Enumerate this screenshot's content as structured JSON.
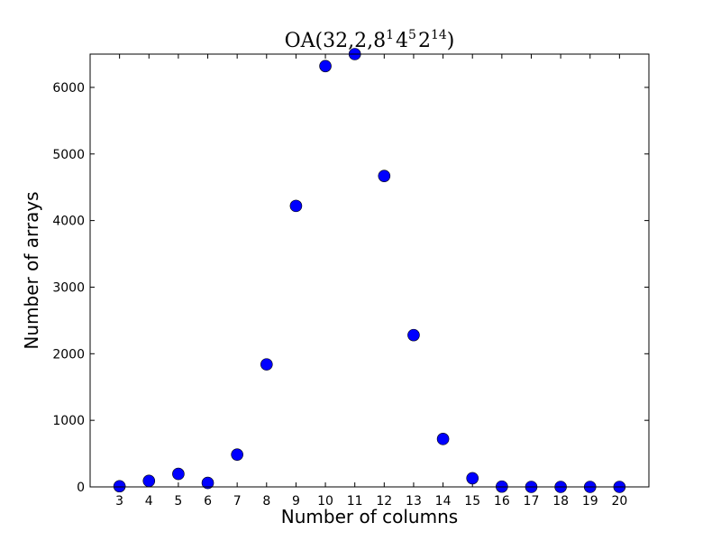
{
  "chart_data": {
    "type": "scatter",
    "title": {
      "prefix": "OA(32,2,8",
      "e1": "1",
      "b2": "4",
      "e2": "5",
      "b3": "2",
      "e3": "14",
      "suffix": ")"
    },
    "xlabel": "Number of columns",
    "ylabel": "Number of arrays",
    "xlim": [
      2,
      21
    ],
    "ylim": [
      0,
      6500
    ],
    "x_ticks": [
      3,
      4,
      5,
      6,
      7,
      8,
      9,
      10,
      11,
      12,
      13,
      14,
      15,
      16,
      17,
      18,
      19,
      20
    ],
    "y_ticks": [
      0,
      1000,
      2000,
      3000,
      4000,
      5000,
      6000
    ],
    "x": [
      3,
      4,
      5,
      6,
      7,
      8,
      9,
      10,
      11,
      12,
      13,
      14,
      15,
      16,
      17,
      18,
      19,
      20
    ],
    "y": [
      10,
      90,
      195,
      60,
      485,
      1840,
      4220,
      6320,
      6500,
      4670,
      2280,
      720,
      130,
      5,
      0,
      0,
      0,
      0
    ],
    "marker_color": "#0000ff",
    "grid": false,
    "legend": "none"
  }
}
